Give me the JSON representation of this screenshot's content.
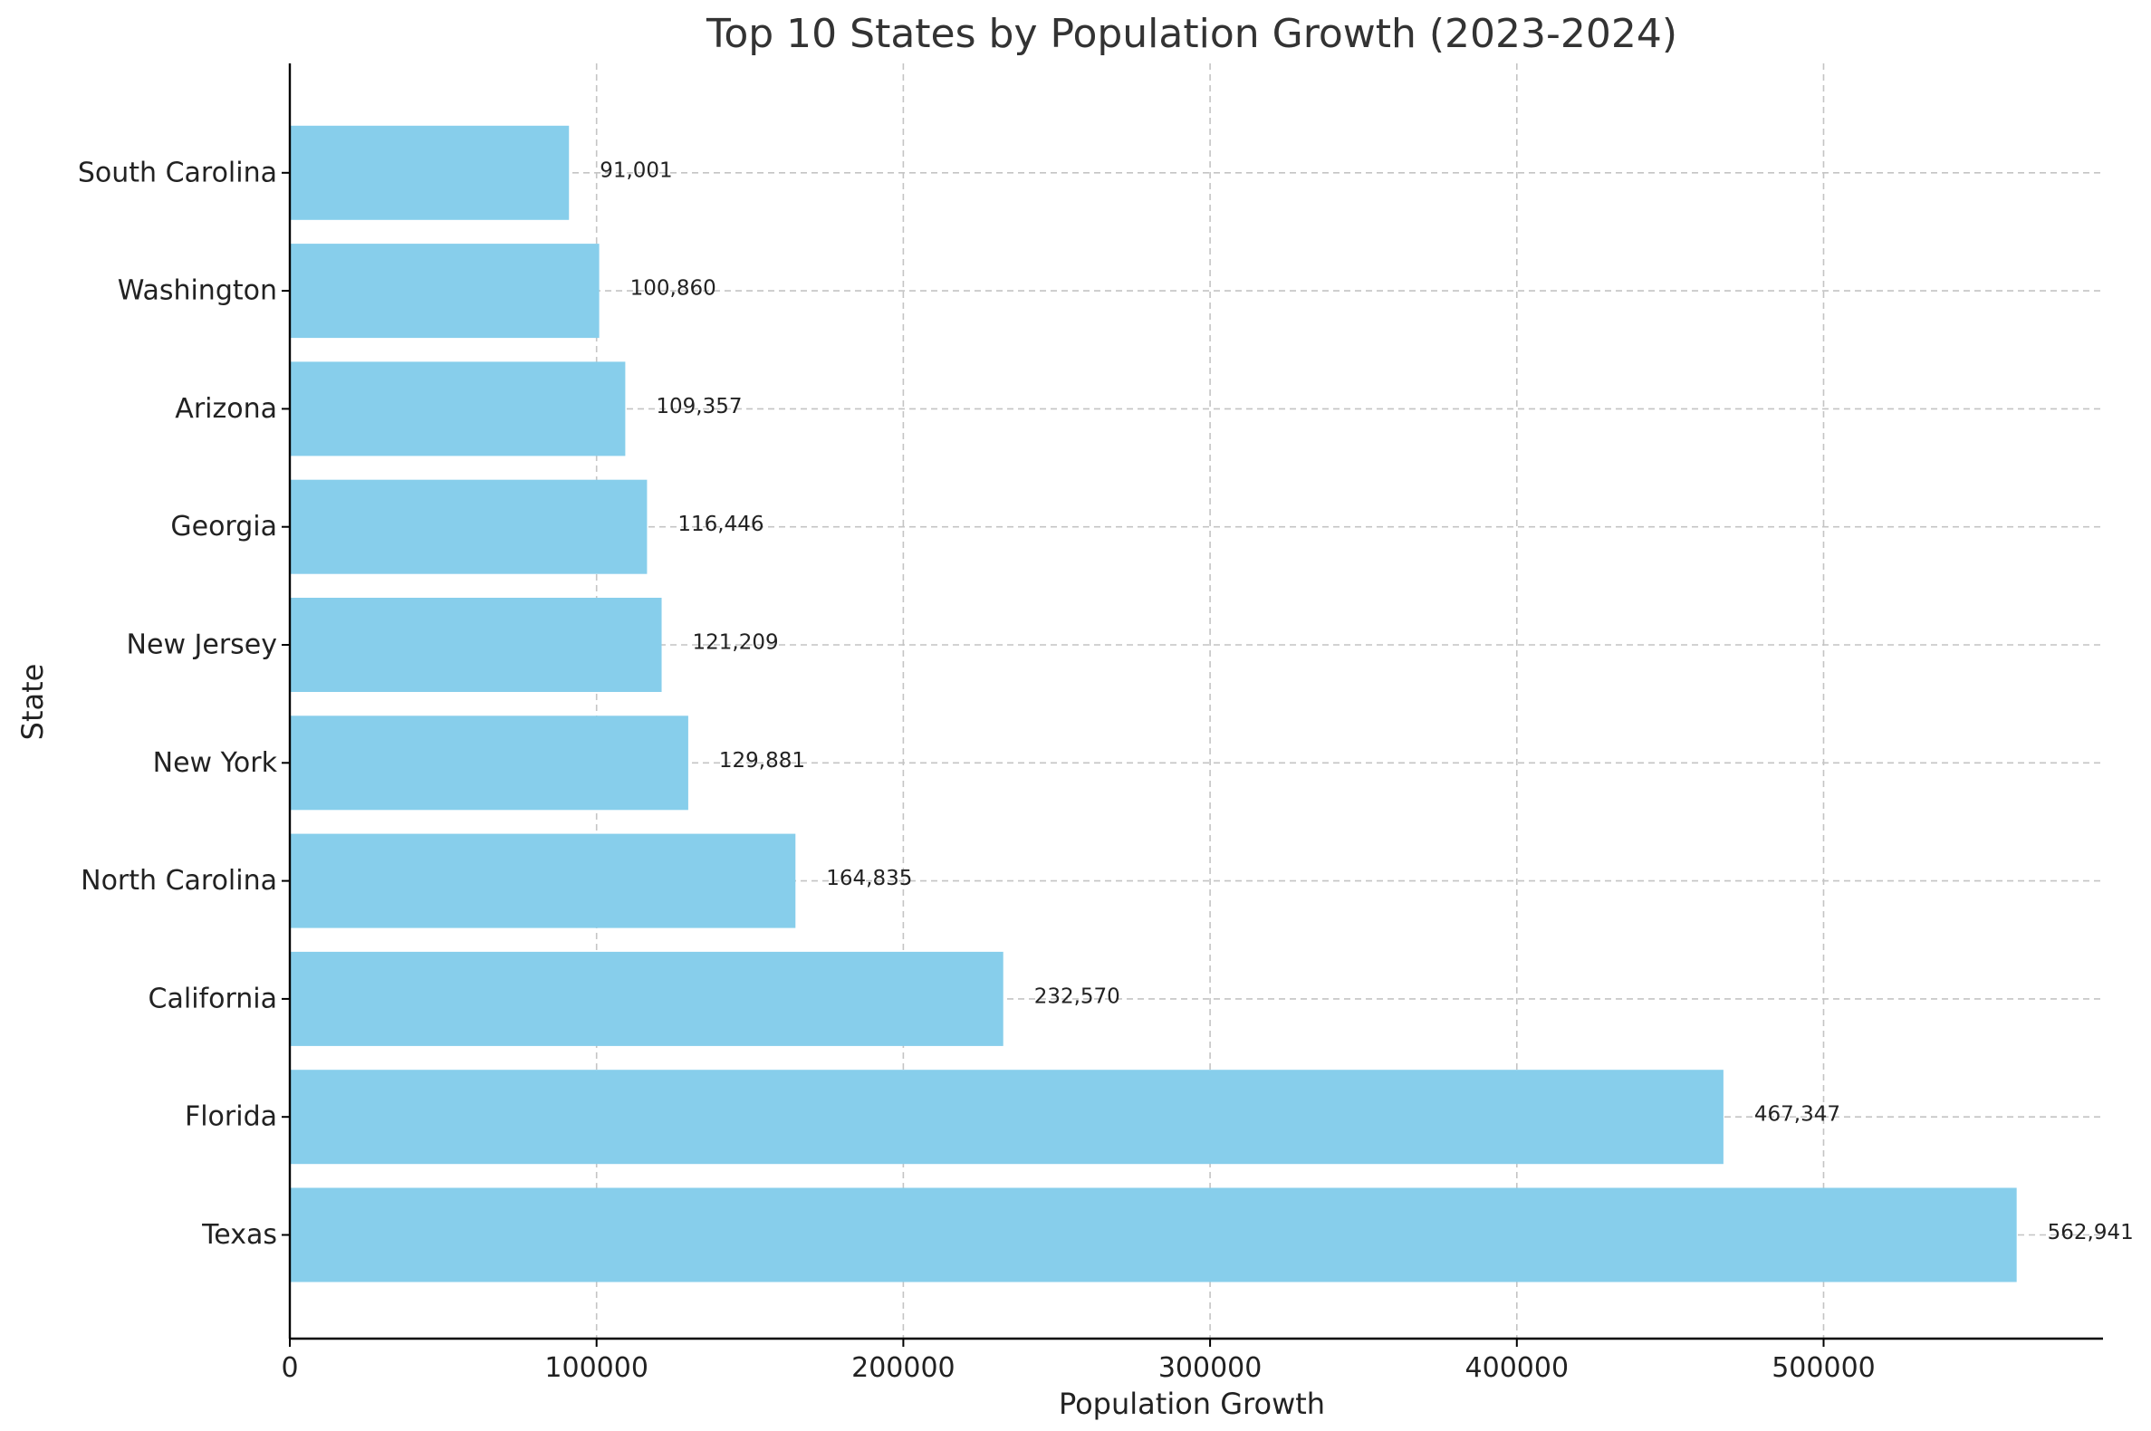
{
  "chart_data": {
    "type": "bar",
    "orientation": "horizontal",
    "title": "Top 10 States by Population Growth (2023-2024)",
    "xlabel": "Population Growth",
    "ylabel": "State",
    "categories": [
      "Texas",
      "Florida",
      "California",
      "North Carolina",
      "New York",
      "New Jersey",
      "Georgia",
      "Arizona",
      "Washington",
      "South Carolina"
    ],
    "values": [
      562941,
      467347,
      232570,
      164835,
      129881,
      121209,
      116446,
      109357,
      100860,
      91001
    ],
    "value_labels": [
      "562,941",
      "467,347",
      "232,570",
      "164,835",
      "129,881",
      "121,209",
      "116,446",
      "109,357",
      "100,860",
      "91,001"
    ],
    "xticks": [
      0,
      100000,
      200000,
      300000,
      400000,
      500000
    ],
    "xtick_labels": [
      "0",
      "100000",
      "200000",
      "300000",
      "400000",
      "500000"
    ],
    "xlim": [
      0,
      591088
    ],
    "grid": true,
    "bar_color": "#87CEEB"
  }
}
